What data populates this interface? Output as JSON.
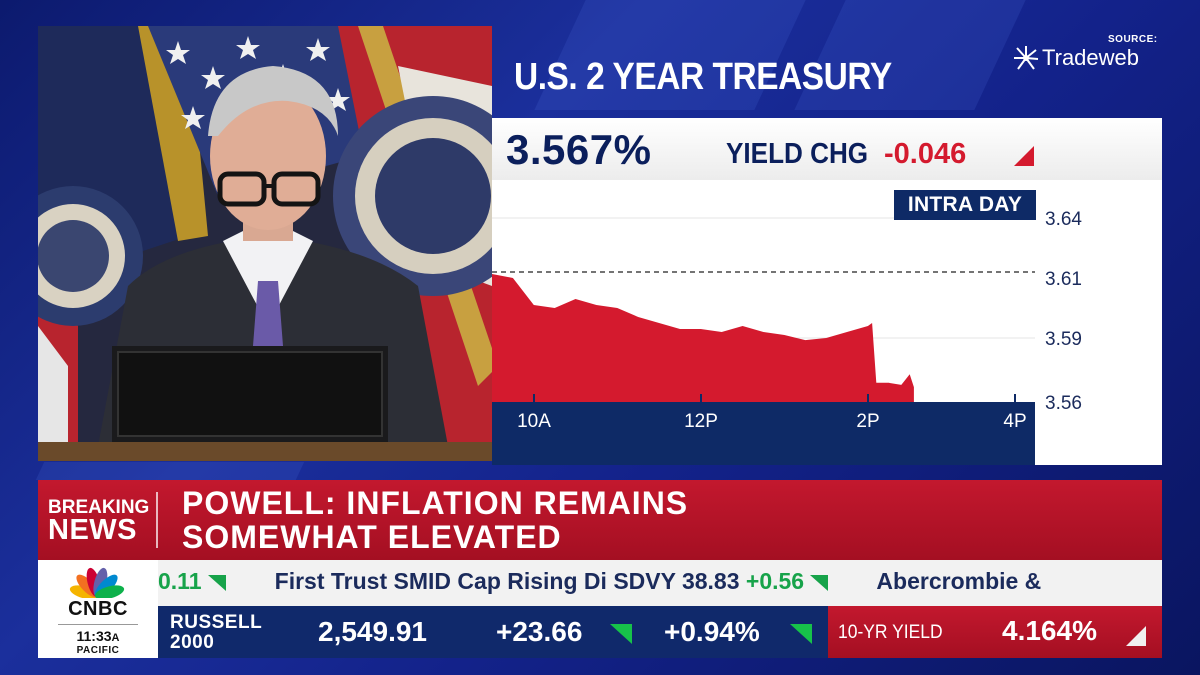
{
  "header": {
    "title": "U.S. 2 YEAR TREASURY",
    "source_label": "SOURCE:",
    "source_name": "Tradeweb"
  },
  "quote": {
    "yield": "3.567%",
    "yield_chg_label": "YIELD CHG",
    "yield_chg_value": "-0.046",
    "badge": "INTRA DAY"
  },
  "chart_data": {
    "type": "area",
    "title": "U.S. 2 YEAR TREASURY",
    "xlabel": "",
    "ylabel": "",
    "x_ticks": [
      "10A",
      "12P",
      "2P",
      "4P"
    ],
    "y_ticks": [
      "3.64",
      "3.61",
      "3.59",
      "3.56"
    ],
    "ylim": [
      3.56,
      3.64
    ],
    "reference_line": 3.613,
    "grid": true,
    "fill_color": "#d41a2e",
    "series": [
      {
        "x": [
          9.5,
          9.75,
          10.0,
          10.25,
          10.5,
          10.75,
          11.0,
          11.25,
          11.5,
          11.75,
          12.0,
          12.25,
          12.5,
          12.75,
          13.0,
          13.25,
          13.5,
          13.75,
          14.0,
          14.05,
          14.1,
          14.25,
          14.4,
          14.5,
          14.55
        ],
        "values": [
          3.612,
          3.61,
          3.601,
          3.6,
          3.603,
          3.601,
          3.6,
          3.597,
          3.595,
          3.593,
          3.593,
          3.592,
          3.594,
          3.592,
          3.591,
          3.589,
          3.59,
          3.592,
          3.594,
          3.595,
          3.569,
          3.569,
          3.568,
          3.573,
          3.567
        ]
      }
    ]
  },
  "breaking": {
    "tag_top": "BREAKING",
    "tag_bottom": "NEWS",
    "headline_line1": "POWELL: INFLATION REMAINS",
    "headline_line2": "SOMEWHAT ELEVATED"
  },
  "bug": {
    "network": "CNBC",
    "time": "11:33",
    "ampm": "A",
    "zone": "PACIFIC",
    "peacock_colors": [
      "#f5b400",
      "#f37021",
      "#cc0033",
      "#6460aa",
      "#0089d0",
      "#0db14b"
    ]
  },
  "ticker": {
    "lead_change": "0.11",
    "item1_name": "First Trust SMID Cap Rising Di",
    "item1_symbol": "SDVY",
    "item1_price": "38.83",
    "item1_change": "+0.56",
    "item2_name": "Abercrombie &"
  },
  "index": {
    "name_line1": "RUSSELL",
    "name_line2": "2000",
    "value": "2,549.91",
    "change": "+23.66",
    "pct": "+0.94%"
  },
  "tenyr": {
    "label": "10-YR YIELD",
    "value": "4.164%"
  },
  "colors": {
    "navy": "#0b1f5c",
    "red": "#d41a2e",
    "green": "#17a34a"
  }
}
